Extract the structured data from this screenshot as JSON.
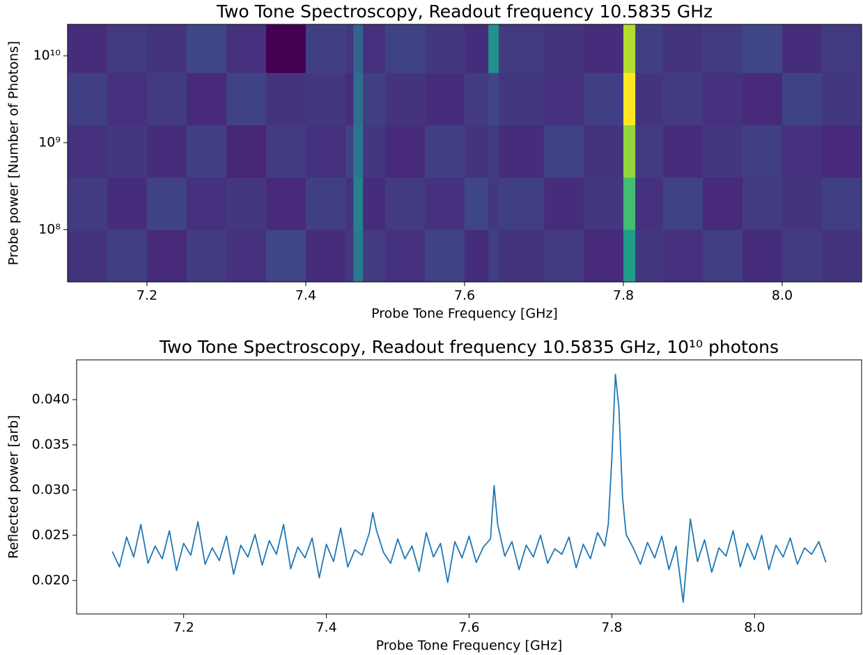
{
  "chart_data": [
    {
      "type": "heatmap",
      "title": "Two Tone Spectroscopy, Readout frequency 10.5835 GHz",
      "xlabel": "Probe Tone Frequency [GHz]",
      "ylabel": "Probe power [Number of Photons]",
      "colormap": "viridis",
      "yscale": "log",
      "xbins": [
        7.1,
        7.15,
        7.2,
        7.25,
        7.3,
        7.35,
        7.4,
        7.45,
        7.46,
        7.472,
        7.5,
        7.55,
        7.6,
        7.63,
        7.643,
        7.7,
        7.75,
        7.8,
        7.815,
        7.85,
        7.9,
        7.95,
        8.0,
        8.05,
        8.1
      ],
      "ybins": [
        25000000,
        100000000,
        400000000,
        1600000000,
        6400000000,
        23000000000
      ],
      "values": [
        [
          0.28,
          0.31,
          0.25,
          0.3,
          0.27,
          0.33,
          0.26,
          0.29,
          0.5,
          0.3,
          0.27,
          0.32,
          0.26,
          0.31,
          0.28,
          0.3,
          0.25,
          0.62,
          0.29,
          0.27,
          0.31,
          0.26,
          0.3,
          0.28
        ],
        [
          0.3,
          0.26,
          0.32,
          0.27,
          0.29,
          0.25,
          0.31,
          0.28,
          0.52,
          0.26,
          0.3,
          0.27,
          0.33,
          0.29,
          0.31,
          0.26,
          0.29,
          0.74,
          0.27,
          0.32,
          0.25,
          0.3,
          0.28,
          0.31
        ],
        [
          0.27,
          0.29,
          0.26,
          0.31,
          0.24,
          0.3,
          0.27,
          0.32,
          0.48,
          0.29,
          0.25,
          0.31,
          0.28,
          0.3,
          0.26,
          0.32,
          0.28,
          0.86,
          0.3,
          0.26,
          0.29,
          0.31,
          0.27,
          0.25
        ],
        [
          0.31,
          0.27,
          0.3,
          0.25,
          0.32,
          0.28,
          0.29,
          0.26,
          0.46,
          0.31,
          0.28,
          0.26,
          0.3,
          0.33,
          0.29,
          0.27,
          0.31,
          1.0,
          0.28,
          0.3,
          0.27,
          0.25,
          0.32,
          0.29
        ],
        [
          0.26,
          0.3,
          0.28,
          0.33,
          0.27,
          0.15,
          0.31,
          0.29,
          0.42,
          0.27,
          0.32,
          0.29,
          0.26,
          0.58,
          0.3,
          0.28,
          0.26,
          0.9,
          0.31,
          0.28,
          0.3,
          0.33,
          0.26,
          0.3
        ]
      ],
      "xlim": [
        7.1,
        8.1
      ],
      "ylim": [
        25000000,
        23000000000
      ],
      "xticks": [
        7.2,
        7.4,
        7.6,
        7.8,
        {
          "value": 8,
          "label": "8.0"
        }
      ],
      "yticks": [
        {
          "value": 100000000,
          "label": "10⁸"
        },
        {
          "value": 1000000000,
          "label": "10⁹"
        },
        {
          "value": 10000000000,
          "label": "10¹⁰"
        }
      ]
    },
    {
      "type": "line",
      "title": "Two Tone Spectroscopy, Readout frequency 10.5835 GHz, 10¹⁰ photons",
      "xlabel": "Probe Tone Frequency [GHz]",
      "ylabel": "Reflected power [arb]",
      "color": "#1f77b4",
      "x": [
        7.1,
        7.11,
        7.12,
        7.13,
        7.14,
        7.15,
        7.16,
        7.17,
        7.18,
        7.19,
        7.2,
        7.21,
        7.22,
        7.23,
        7.24,
        7.25,
        7.26,
        7.27,
        7.28,
        7.29,
        7.3,
        7.31,
        7.32,
        7.33,
        7.34,
        7.35,
        7.36,
        7.37,
        7.38,
        7.39,
        7.4,
        7.41,
        7.42,
        7.43,
        7.44,
        7.45,
        7.46,
        7.465,
        7.47,
        7.48,
        7.49,
        7.5,
        7.51,
        7.52,
        7.53,
        7.54,
        7.55,
        7.56,
        7.57,
        7.58,
        7.59,
        7.6,
        7.61,
        7.62,
        7.63,
        7.635,
        7.64,
        7.65,
        7.66,
        7.67,
        7.68,
        7.69,
        7.7,
        7.71,
        7.72,
        7.73,
        7.74,
        7.75,
        7.76,
        7.77,
        7.78,
        7.79,
        7.795,
        7.8,
        7.805,
        7.81,
        7.815,
        7.82,
        7.83,
        7.84,
        7.85,
        7.86,
        7.87,
        7.88,
        7.89,
        7.9,
        7.91,
        7.92,
        7.93,
        7.94,
        7.95,
        7.96,
        7.97,
        7.98,
        7.99,
        8.0,
        8.01,
        8.02,
        8.03,
        8.04,
        8.05,
        8.06,
        8.07,
        8.08,
        8.09,
        8.1
      ],
      "values": [
        0.0232,
        0.0215,
        0.0248,
        0.0226,
        0.0262,
        0.0219,
        0.0238,
        0.0224,
        0.0255,
        0.0211,
        0.0241,
        0.0228,
        0.0265,
        0.0218,
        0.0236,
        0.0222,
        0.0249,
        0.0207,
        0.0239,
        0.0226,
        0.0251,
        0.0217,
        0.0244,
        0.0229,
        0.0262,
        0.0213,
        0.0237,
        0.0225,
        0.0247,
        0.0203,
        0.024,
        0.0221,
        0.0258,
        0.0215,
        0.0234,
        0.0228,
        0.0252,
        0.0275,
        0.0256,
        0.0231,
        0.0219,
        0.0246,
        0.0224,
        0.0238,
        0.021,
        0.0253,
        0.0226,
        0.0241,
        0.0198,
        0.0243,
        0.0225,
        0.0249,
        0.022,
        0.0237,
        0.0246,
        0.0305,
        0.0262,
        0.0227,
        0.0243,
        0.0212,
        0.0239,
        0.0226,
        0.025,
        0.0219,
        0.0235,
        0.0229,
        0.0248,
        0.0214,
        0.024,
        0.0224,
        0.0253,
        0.0238,
        0.0262,
        0.0335,
        0.0428,
        0.039,
        0.0292,
        0.0251,
        0.0236,
        0.0218,
        0.0242,
        0.0225,
        0.0249,
        0.0212,
        0.0238,
        0.0176,
        0.0268,
        0.0221,
        0.0245,
        0.0209,
        0.0236,
        0.0227,
        0.0255,
        0.0215,
        0.0241,
        0.0223,
        0.025,
        0.0212,
        0.0239,
        0.0226,
        0.0247,
        0.0218,
        0.0236,
        0.0229,
        0.0243,
        0.022
      ],
      "xlim": [
        7.05,
        8.15
      ],
      "ylim": [
        0.0163,
        0.0444
      ],
      "xticks": [
        7.2,
        7.4,
        7.6,
        7.8,
        {
          "value": 8,
          "label": "8.0"
        }
      ],
      "yticks": [
        {
          "value": 0.02,
          "label": "0.020"
        },
        0.025,
        {
          "value": 0.03,
          "label": "0.030"
        },
        0.035,
        {
          "value": 0.04,
          "label": "0.040"
        }
      ]
    }
  ]
}
